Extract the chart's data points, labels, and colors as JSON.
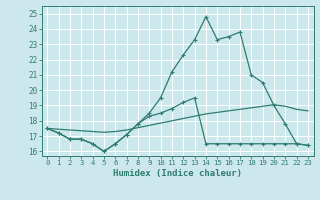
{
  "xlabel": "Humidex (Indice chaleur)",
  "background_color": "#cce8ec",
  "grid_color": "#ffffff",
  "line_color": "#2e7d6e",
  "xlim": [
    -0.5,
    23.5
  ],
  "ylim": [
    15.7,
    25.5
  ],
  "yticks": [
    16,
    17,
    18,
    19,
    20,
    21,
    22,
    23,
    24,
    25
  ],
  "xticks": [
    0,
    1,
    2,
    3,
    4,
    5,
    6,
    7,
    8,
    9,
    10,
    11,
    12,
    13,
    14,
    15,
    16,
    17,
    18,
    19,
    20,
    21,
    22,
    23
  ],
  "series1": [
    17.5,
    17.2,
    16.8,
    16.8,
    16.5,
    16.0,
    16.5,
    17.1,
    17.8,
    18.5,
    19.5,
    21.2,
    22.3,
    23.3,
    24.8,
    23.3,
    23.5,
    23.8,
    21.0,
    20.5,
    19.0,
    17.8,
    16.5,
    16.4
  ],
  "series2": [
    17.5,
    17.2,
    16.8,
    16.8,
    16.5,
    16.0,
    16.5,
    17.1,
    17.8,
    18.3,
    18.5,
    18.8,
    19.2,
    19.5,
    16.5,
    16.5,
    16.5,
    16.5,
    16.5,
    16.5,
    16.5,
    16.5,
    16.5,
    16.4
  ],
  "series3": [
    17.5,
    17.45,
    17.4,
    17.35,
    17.3,
    17.25,
    17.3,
    17.4,
    17.55,
    17.7,
    17.85,
    18.0,
    18.15,
    18.3,
    18.45,
    18.55,
    18.65,
    18.75,
    18.85,
    18.95,
    19.05,
    18.95,
    18.75,
    18.65
  ]
}
